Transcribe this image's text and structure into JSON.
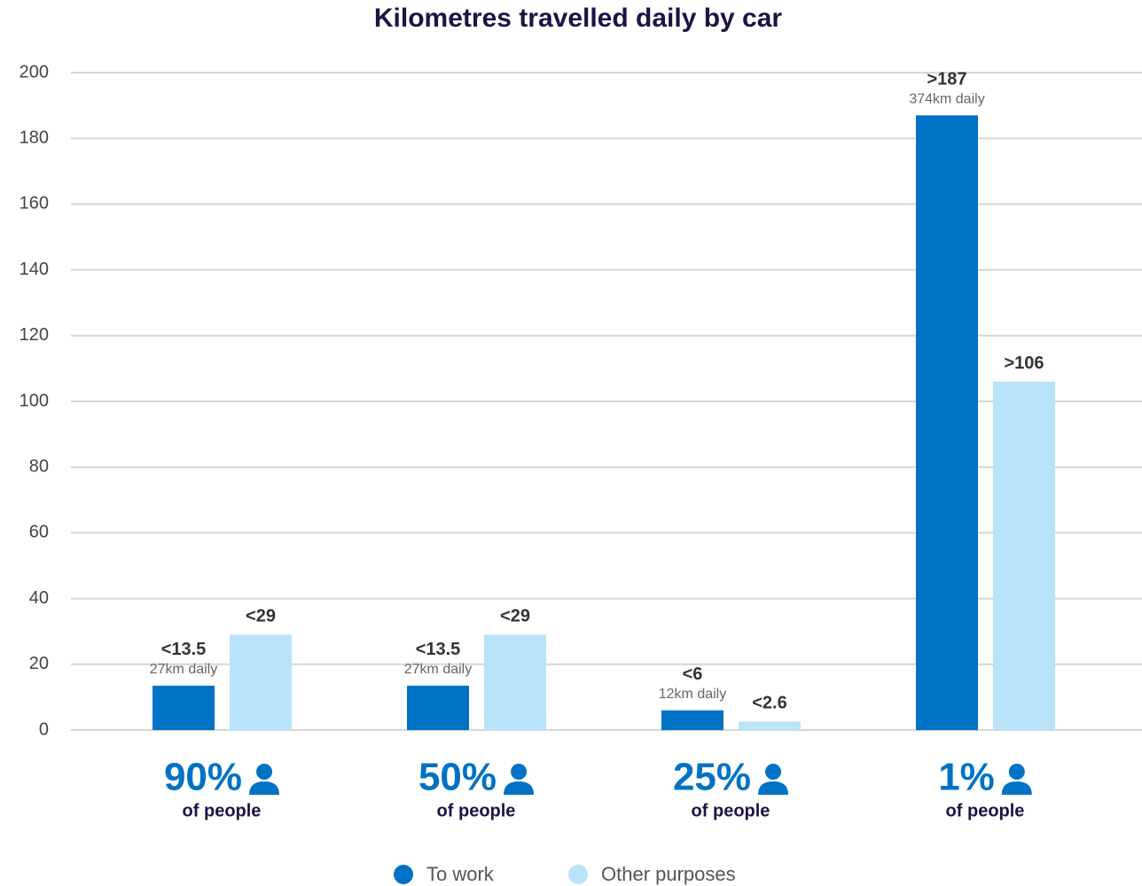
{
  "chart_data": {
    "type": "bar",
    "title": "Kilometres travelled daily by car",
    "categories": [
      "90%",
      "50%",
      "25%",
      "1%"
    ],
    "category_sublabels": [
      "of people",
      "of people",
      "of people",
      "of people"
    ],
    "series": [
      {
        "name": "To work",
        "color": "#0072c6",
        "values": [
          13.5,
          13.5,
          6,
          187
        ],
        "value_labels": [
          "<13.5",
          "<13.5",
          "<6",
          ">187"
        ],
        "daily_labels": [
          "27km daily",
          "27km daily",
          "12km daily",
          "374km daily"
        ]
      },
      {
        "name": "Other purposes",
        "color": "#b9e3f8",
        "values": [
          29,
          29,
          2.6,
          106
        ],
        "value_labels": [
          "<29",
          "<29",
          "<2.6",
          ">106"
        ]
      }
    ],
    "ylim": [
      0,
      200
    ],
    "yticks": [
      0,
      20,
      40,
      60,
      80,
      100,
      120,
      140,
      160,
      180,
      200
    ],
    "grid": true,
    "legend": "bottom"
  }
}
